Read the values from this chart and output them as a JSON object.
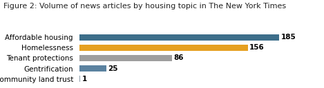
{
  "title": "Figure 2: Volume of news articles by housing topic in The New York Times",
  "categories": [
    "Community land trust",
    "Gentrification",
    "Tenant protections",
    "Homelessness",
    "Affordable housing"
  ],
  "values": [
    1,
    25,
    86,
    156,
    185
  ],
  "bar_colors": [
    "#8c9dab",
    "#5b82a0",
    "#9e9e9e",
    "#e6a020",
    "#3d6e8a"
  ],
  "value_labels": [
    "1",
    "25",
    "86",
    "156",
    "185"
  ],
  "xlim": [
    0,
    210
  ],
  "title_fontsize": 8.0,
  "label_fontsize": 7.5,
  "value_fontsize": 7.5,
  "bar_height": 0.62,
  "title_color": "#222222",
  "bg_color": "#ffffff"
}
